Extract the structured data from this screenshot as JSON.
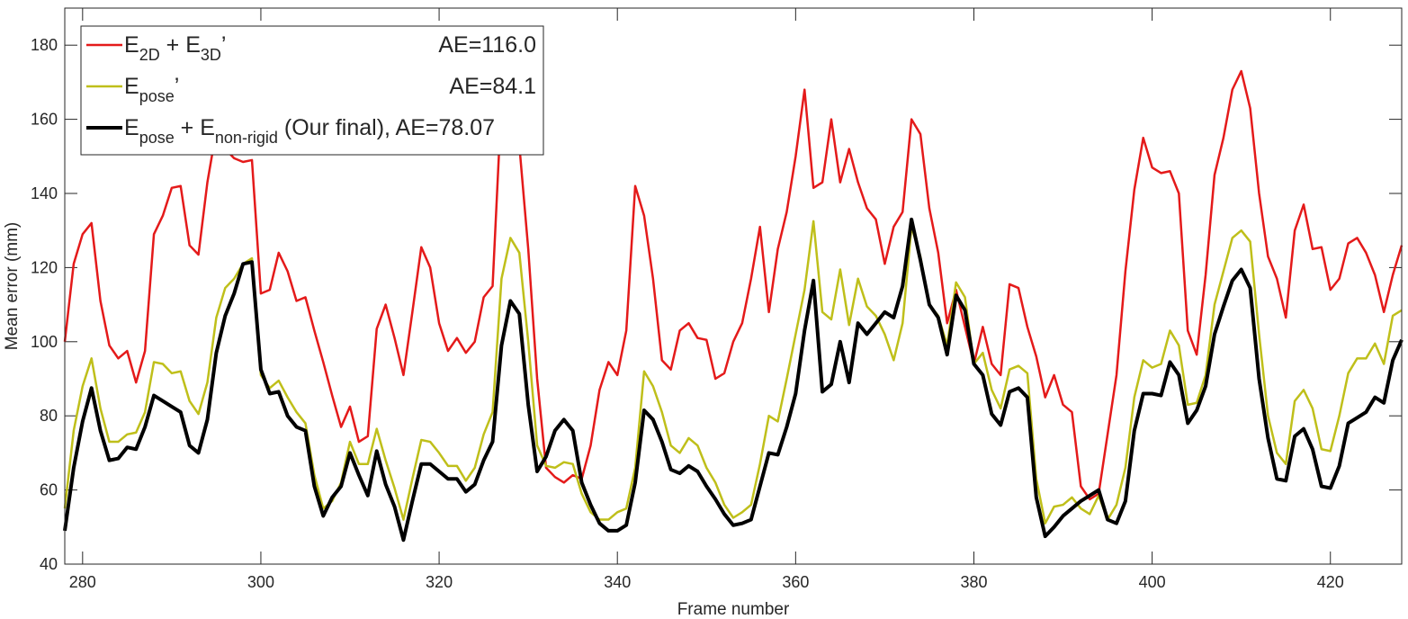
{
  "chart_data": {
    "type": "line",
    "xlabel": "Frame number",
    "ylabel": "Mean error (mm)",
    "xlim": [
      278,
      428
    ],
    "ylim": [
      40,
      190
    ],
    "xticks": [
      280,
      300,
      320,
      340,
      360,
      380,
      400,
      420
    ],
    "yticks": [
      40,
      60,
      80,
      100,
      120,
      140,
      160,
      180
    ],
    "grid": false,
    "legend_position": "top-left",
    "x_start": 278,
    "x_step": 1,
    "series": [
      {
        "name": "E2D + E3D'",
        "legend_main": [
          "E",
          " + E",
          "’"
        ],
        "legend_subs": [
          "2D",
          "3D"
        ],
        "ae_label": "AE=116.0",
        "color": "#e41a1a",
        "values": [
          100,
          121,
          129,
          132,
          111,
          99,
          95.5,
          97.5,
          89,
          97.5,
          129,
          134,
          141.5,
          142,
          126,
          123.5,
          143,
          157,
          152,
          149.5,
          148.5,
          149,
          113,
          114,
          124,
          119,
          111,
          112,
          103,
          94.5,
          85.5,
          77,
          82.5,
          73,
          74.5,
          103.5,
          110,
          101,
          91,
          108,
          125.5,
          120,
          105,
          97.5,
          101,
          97,
          100,
          112,
          115,
          165,
          163,
          153,
          125,
          90,
          66,
          63.5,
          62,
          64,
          63,
          72,
          87,
          94.5,
          91,
          103,
          142,
          134,
          117,
          95,
          92.5,
          103,
          105,
          101,
          100.5,
          90,
          91.5,
          100,
          105,
          117,
          131,
          108,
          125,
          135,
          150,
          168,
          141.5,
          143,
          160,
          143,
          152,
          143,
          136,
          133,
          121,
          131,
          135,
          160,
          156,
          136,
          124,
          105,
          114,
          104,
          94,
          104,
          94,
          91,
          115.5,
          114.5,
          104,
          96,
          85,
          91,
          83,
          81,
          61,
          57.5,
          59,
          75,
          91,
          119,
          141,
          155,
          147,
          145.5,
          146,
          140,
          103,
          96.5,
          118,
          145,
          155,
          168,
          173,
          163,
          140,
          123,
          117,
          106.5,
          130,
          137,
          125,
          125.5,
          114,
          117,
          126.5,
          128,
          124,
          118,
          108,
          118,
          126
        ]
      },
      {
        "name": "Epose'",
        "legend_main": [
          "E",
          "’"
        ],
        "legend_subs": [
          "pose"
        ],
        "ae_label": "AE=84.1",
        "color": "#bfbf1a",
        "values": [
          55,
          76,
          88,
          95.5,
          82,
          73,
          73,
          75,
          75.5,
          81,
          94.5,
          94,
          91.5,
          92,
          84,
          80.5,
          89,
          106.5,
          114.5,
          117,
          121,
          122.5,
          91,
          87.5,
          89.5,
          85,
          81,
          78,
          64,
          55,
          57,
          62,
          73,
          67,
          67,
          76.5,
          68,
          60.5,
          52,
          63,
          73.5,
          73,
          70,
          66.5,
          66.5,
          62.5,
          66,
          75,
          81,
          117,
          128,
          124,
          100,
          72,
          66.5,
          66,
          67.5,
          67,
          59,
          54,
          52,
          52,
          54,
          55,
          66,
          92,
          88,
          81,
          72,
          70,
          74,
          72,
          66,
          62,
          56,
          52.5,
          54,
          56,
          67,
          80,
          78.5,
          90,
          102,
          114,
          132.5,
          108,
          106,
          119.5,
          104.5,
          117,
          109.5,
          107,
          102,
          95,
          105,
          131,
          123,
          110,
          107,
          99,
          116,
          112,
          94,
          97,
          87,
          82,
          92.5,
          93.5,
          91.5,
          63,
          51,
          55.5,
          56,
          58,
          55,
          53.5,
          58.5,
          52,
          56,
          66,
          85,
          95,
          93,
          94,
          103,
          99,
          83,
          83.5,
          91,
          110,
          119,
          128,
          130,
          127,
          102,
          80,
          70,
          67,
          84,
          87,
          82,
          71,
          70.5,
          80,
          91.5,
          95.5,
          95.5,
          99.5,
          94,
          107,
          108.5
        ]
      },
      {
        "name": "Epose + Enon-rigid (Our final)",
        "legend_main": [
          "E",
          " + E",
          " (Our final), AE=78.07"
        ],
        "legend_subs": [
          "pose",
          "non-rigid"
        ],
        "ae_label": "",
        "color": "#000000",
        "values": [
          49,
          66,
          78.5,
          87.5,
          76,
          68,
          68.5,
          71.5,
          71,
          77,
          85.5,
          84,
          82.5,
          81,
          72,
          70,
          79,
          97,
          107,
          113,
          121,
          121.5,
          92.5,
          86,
          86.5,
          80,
          77,
          76,
          61,
          53,
          58,
          61,
          70,
          64,
          58.5,
          70.5,
          61.5,
          55.5,
          46.5,
          57,
          67,
          67,
          65,
          63,
          63,
          59.5,
          61.5,
          68,
          73,
          99,
          111,
          107.5,
          83,
          65,
          69,
          76,
          79,
          76,
          62,
          56,
          51,
          49,
          49,
          50.5,
          62,
          81.5,
          79,
          73,
          65.5,
          64.5,
          66.5,
          65,
          61,
          57.5,
          53.5,
          50.5,
          51,
          52,
          61,
          70,
          69.5,
          77,
          86,
          103,
          116.5,
          86.5,
          88.5,
          100,
          89,
          105,
          102,
          105,
          108,
          106.5,
          115,
          133,
          122,
          110,
          106.5,
          96.5,
          112.5,
          108.5,
          94,
          91,
          80.5,
          77.5,
          86.5,
          87.5,
          85,
          58,
          47.5,
          50,
          53,
          55,
          57,
          58.5,
          60,
          52,
          51,
          57,
          76,
          86,
          86,
          85.5,
          94.5,
          91,
          78,
          81.5,
          88,
          102,
          109.5,
          116.5,
          119.5,
          114.5,
          90,
          74,
          63,
          62.5,
          74.5,
          76.5,
          71,
          61,
          60.5,
          66.5,
          78,
          79.5,
          81,
          85,
          83.5,
          95,
          100.5
        ]
      }
    ]
  }
}
